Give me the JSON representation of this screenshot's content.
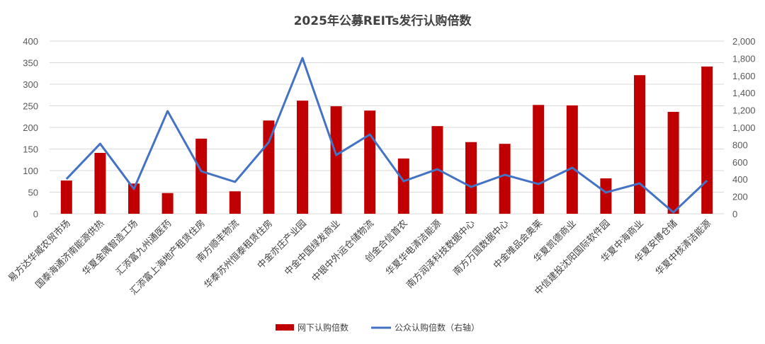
{
  "chart_data": {
    "type": "bar+line",
    "title": "2025年公募REITs发行认购倍数",
    "categories": [
      "易方达华威农贸市场",
      "国泰海通济南能源供热",
      "华夏金隅智造工场",
      "汇添富九州通医药",
      "汇添富上海地产租赁住房",
      "南方顺丰物流",
      "华泰苏州恒泰租赁住房",
      "中金亦庄产业园",
      "中金中国绿发商业",
      "中银中外运仓储物流",
      "创金合信首农",
      "华夏华电清洁能源",
      "南方润泽科技数据中心",
      "南方万国数据中心",
      "中金唯品会奥莱",
      "华夏凯德商业",
      "中信建投沈阳国际软件园",
      "华夏中海商业",
      "华夏安博仓储",
      "华夏中核清洁能源"
    ],
    "series": [
      {
        "name": "网下认购倍数",
        "type": "bar",
        "axis": "left",
        "color": "#C00000",
        "values": [
          77,
          141,
          70,
          48,
          174,
          52,
          216,
          262,
          249,
          239,
          128,
          203,
          166,
          162,
          252,
          251,
          82,
          321,
          236,
          341
        ]
      },
      {
        "name": "公众认购倍数（右轴）",
        "type": "line",
        "axis": "right",
        "color": "#4472C4",
        "values": [
          402,
          811,
          287,
          1189,
          492,
          369,
          828,
          1803,
          680,
          918,
          377,
          516,
          311,
          451,
          344,
          533,
          246,
          352,
          16,
          385
        ]
      }
    ],
    "left_axis": {
      "ylim": [
        0,
        400
      ],
      "ticks": [
        "0",
        "50",
        "100",
        "150",
        "200",
        "250",
        "300",
        "350",
        "400"
      ]
    },
    "right_axis": {
      "ylim": [
        0,
        2000
      ],
      "ticks": [
        "0",
        "200",
        "400",
        "600",
        "800",
        "1,000",
        "1,200",
        "1,400",
        "1,600",
        "1,800",
        "2,000"
      ]
    },
    "grid": true,
    "legend": "bottom"
  }
}
